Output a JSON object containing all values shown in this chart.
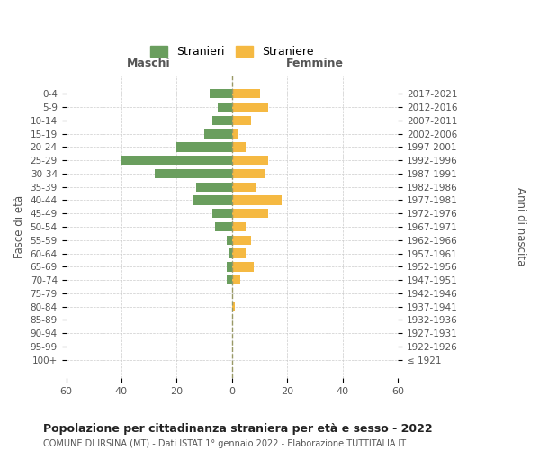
{
  "age_groups": [
    "100+",
    "95-99",
    "90-94",
    "85-89",
    "80-84",
    "75-79",
    "70-74",
    "65-69",
    "60-64",
    "55-59",
    "50-54",
    "45-49",
    "40-44",
    "35-39",
    "30-34",
    "25-29",
    "20-24",
    "15-19",
    "10-14",
    "5-9",
    "0-4"
  ],
  "birth_years": [
    "≤ 1921",
    "1922-1926",
    "1927-1931",
    "1932-1936",
    "1937-1941",
    "1942-1946",
    "1947-1951",
    "1952-1956",
    "1957-1961",
    "1962-1966",
    "1967-1971",
    "1972-1976",
    "1977-1981",
    "1982-1986",
    "1987-1991",
    "1992-1996",
    "1997-2001",
    "2002-2006",
    "2007-2011",
    "2012-2016",
    "2017-2021"
  ],
  "males": [
    0,
    0,
    0,
    0,
    0,
    0,
    2,
    2,
    1,
    2,
    6,
    7,
    14,
    13,
    28,
    40,
    20,
    10,
    7,
    5,
    8
  ],
  "females": [
    0,
    0,
    0,
    0,
    1,
    0,
    3,
    8,
    5,
    7,
    5,
    13,
    18,
    9,
    12,
    13,
    5,
    2,
    7,
    13,
    10
  ],
  "male_color": "#6a9e5e",
  "female_color": "#f5b942",
  "background_color": "#ffffff",
  "grid_color": "#cccccc",
  "title": "Popolazione per cittadinanza straniera per età e sesso - 2022",
  "subtitle": "COMUNE DI IRSINA (MT) - Dati ISTAT 1° gennaio 2022 - Elaborazione TUTTITALIA.IT",
  "legend_stranieri": "Stranieri",
  "legend_straniere": "Straniere",
  "xlabel_left": "Maschi",
  "xlabel_right": "Femmine",
  "ylabel_left": "Fasce di età",
  "ylabel_right": "Anni di nascita",
  "xlim": 60,
  "bar_height": 0.7
}
